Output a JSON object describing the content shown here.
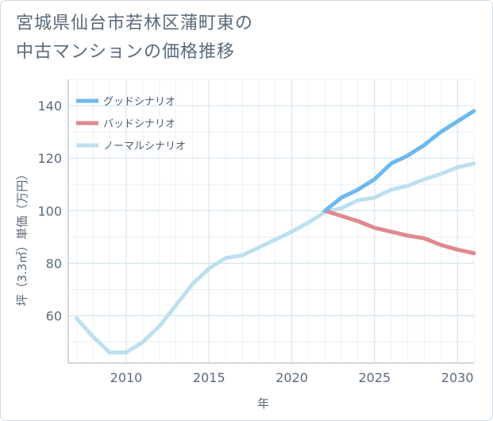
{
  "title_line1": "宮城県仙台市若林区蒲町東の",
  "title_line2": "中古マンションの価格推移",
  "chart_data": {
    "type": "line",
    "xlabel": "年",
    "ylabel": "坪（3.3㎡）単価（万円）",
    "xlim": [
      2006.5,
      2031
    ],
    "ylim": [
      42,
      150
    ],
    "xticks": [
      2010,
      2015,
      2020,
      2025,
      2030
    ],
    "yticks": [
      60,
      80,
      100,
      120,
      140
    ],
    "grid": true,
    "legend_position": "top-left",
    "series": [
      {
        "name": "グッドシナリオ",
        "color": "#6cb8ec",
        "width": 5,
        "x": [
          2022,
          2023,
          2024,
          2025,
          2026,
          2027,
          2028,
          2029,
          2030,
          2031
        ],
        "y": [
          100,
          105,
          108,
          112,
          118,
          121,
          125,
          130,
          134,
          138
        ]
      },
      {
        "name": "バッドシナリオ",
        "color": "#e0888f",
        "width": 5,
        "x": [
          2022,
          2023,
          2024,
          2025,
          2026,
          2027,
          2028,
          2029,
          2030,
          2031
        ],
        "y": [
          100,
          98,
          96,
          93.5,
          92,
          90.5,
          89.5,
          87,
          85.2,
          83.8
        ]
      },
      {
        "name": "ノーマルシナリオ",
        "color": "#bde0ef",
        "width": 5,
        "x": [
          2007,
          2008,
          2009,
          2010,
          2011,
          2012,
          2013,
          2014,
          2015,
          2016,
          2017,
          2018,
          2019,
          2020,
          2021,
          2022,
          2023,
          2024,
          2025,
          2026,
          2027,
          2028,
          2029,
          2030,
          2031
        ],
        "y": [
          59,
          52,
          46,
          46,
          50,
          56,
          64,
          72,
          78,
          82,
          83,
          86,
          89,
          92,
          95.5,
          99.5,
          101,
          104,
          105,
          108,
          109.5,
          112,
          114,
          116.5,
          118
        ]
      }
    ]
  }
}
